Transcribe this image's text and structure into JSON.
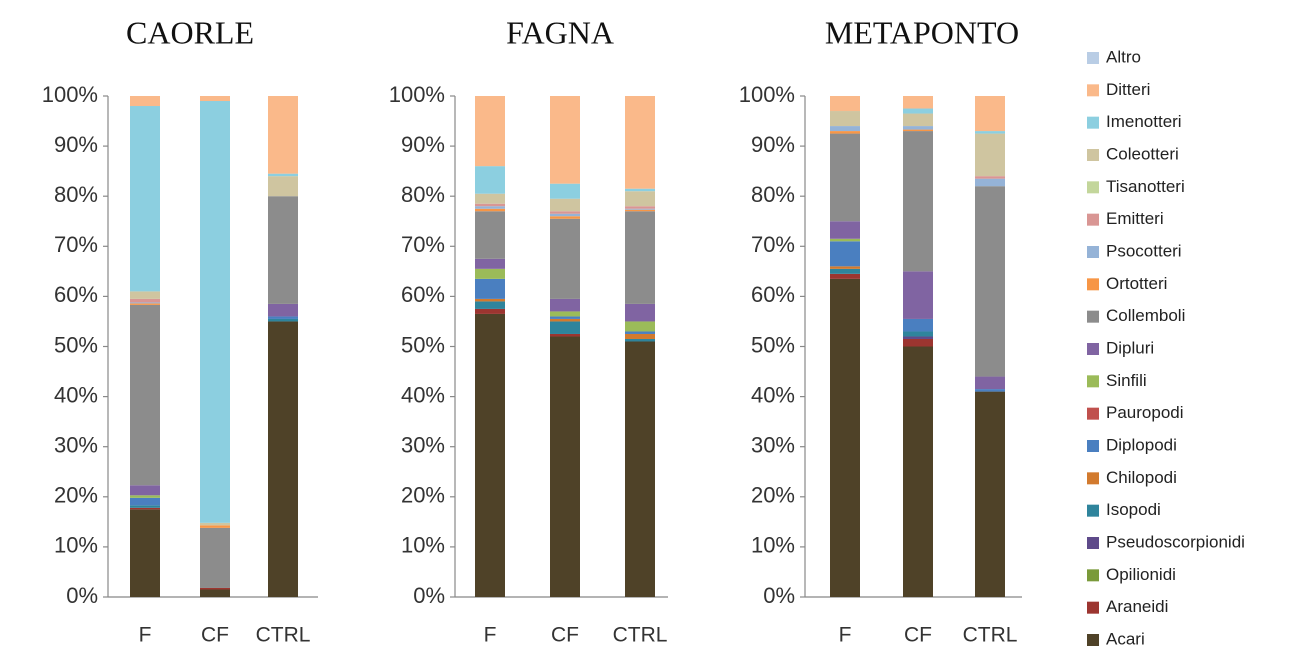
{
  "chart_data": {
    "type": "bar",
    "stacked": true,
    "groups": [
      {
        "title": "CAORLE",
        "categories": [
          "F",
          "CF",
          "CTRL"
        ]
      },
      {
        "title": "FAGNA",
        "categories": [
          "F",
          "CF",
          "CTRL"
        ]
      },
      {
        "title": "METAPONTO",
        "categories": [
          "F",
          "CF",
          "CTRL"
        ]
      }
    ],
    "ylim": [
      0,
      100
    ],
    "yticks": [
      {
        "value": 0,
        "label": "0%"
      },
      {
        "value": 10,
        "label": "10%"
      },
      {
        "value": 20,
        "label": "20%"
      },
      {
        "value": 30,
        "label": "30%"
      },
      {
        "value": 40,
        "label": "40%"
      },
      {
        "value": 50,
        "label": "50%"
      },
      {
        "value": 60,
        "label": "60%"
      },
      {
        "value": 70,
        "label": "70%"
      },
      {
        "value": 80,
        "label": "80%"
      },
      {
        "value": 90,
        "label": "90%"
      },
      {
        "value": 100,
        "label": "100%"
      }
    ],
    "series": [
      {
        "name": "Acari",
        "color": "#4f4228",
        "values": [
          17.5,
          1.5,
          55,
          56.5,
          52,
          51,
          63.5,
          50,
          41
        ]
      },
      {
        "name": "Araneidi",
        "color": "#9c3530",
        "values": [
          0.3,
          0.3,
          0,
          1,
          0.5,
          0,
          1,
          1.5,
          0
        ]
      },
      {
        "name": "Opilionidi",
        "color": "#7a9a3a",
        "values": [
          0,
          0,
          0,
          0,
          0,
          0,
          0,
          0,
          0
        ]
      },
      {
        "name": "Pseudoscorpionidi",
        "color": "#5e4a8a",
        "values": [
          0,
          0,
          0,
          0,
          0,
          0,
          0,
          0.5,
          0
        ]
      },
      {
        "name": "Isopodi",
        "color": "#2f849c",
        "values": [
          0.5,
          0,
          0.5,
          1.5,
          2.5,
          0.5,
          1,
          1,
          0
        ]
      },
      {
        "name": "Chilopodi",
        "color": "#d27a2e",
        "values": [
          0,
          0,
          0,
          0.5,
          0.5,
          1,
          0.5,
          0,
          0
        ]
      },
      {
        "name": "Diplopodi",
        "color": "#4a7fc0",
        "values": [
          1.5,
          0,
          0.5,
          4,
          0.5,
          0.5,
          5,
          2.5,
          0.5
        ]
      },
      {
        "name": "Pauropodi",
        "color": "#c0504d",
        "values": [
          0,
          0,
          0,
          0,
          0,
          0,
          0,
          0,
          0
        ]
      },
      {
        "name": "Sinfili",
        "color": "#9bbb59",
        "values": [
          0.5,
          0,
          0,
          2,
          1,
          2,
          0.5,
          0,
          0
        ]
      },
      {
        "name": "Dipluri",
        "color": "#8064a2",
        "values": [
          2,
          0,
          2.5,
          2,
          2.5,
          3.5,
          3.5,
          9.5,
          2.5
        ]
      },
      {
        "name": "Collemboli",
        "color": "#8c8c8c",
        "values": [
          36,
          12,
          21.5,
          9.5,
          16,
          18.5,
          17.5,
          28,
          38
        ]
      },
      {
        "name": "Ortotteri",
        "color": "#f79646",
        "values": [
          0.3,
          0.5,
          0,
          0.5,
          0.5,
          0.3,
          0.5,
          0.3,
          0
        ]
      },
      {
        "name": "Psocotteri",
        "color": "#95b3d7",
        "values": [
          0.2,
          0,
          0,
          0.5,
          0.5,
          0.2,
          1,
          0.7,
          1.5
        ]
      },
      {
        "name": "Emitteri",
        "color": "#d99694",
        "values": [
          0.7,
          0,
          0,
          0.5,
          0.5,
          0.5,
          0,
          0,
          0.5
        ]
      },
      {
        "name": "Tisanotteri",
        "color": "#c3d69b",
        "values": [
          0,
          0,
          0,
          0,
          0,
          0,
          0,
          0,
          0
        ]
      },
      {
        "name": "Coleotteri",
        "color": "#cfc5a0",
        "values": [
          1.5,
          0.5,
          4,
          2,
          2.5,
          3,
          3,
          2.5,
          8.5
        ]
      },
      {
        "name": "Imenotteri",
        "color": "#8ccfe0",
        "values": [
          37,
          84.2,
          0.5,
          5.5,
          3,
          0.5,
          0,
          1,
          0.5
        ]
      },
      {
        "name": "Ditteri",
        "color": "#fab98a",
        "values": [
          2,
          1,
          15.5,
          14,
          17.5,
          18.5,
          3,
          2.5,
          7
        ]
      },
      {
        "name": "Altro",
        "color": "#b9cde5",
        "values": [
          0,
          0,
          0,
          0,
          0,
          0,
          0,
          0,
          0
        ]
      }
    ]
  }
}
